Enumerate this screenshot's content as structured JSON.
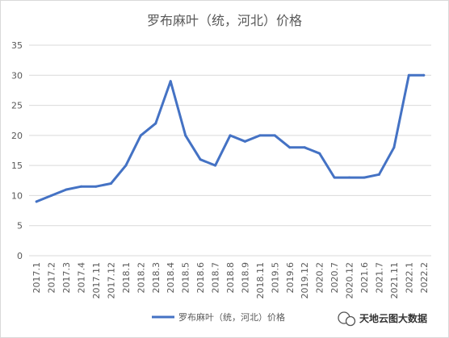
{
  "chart_data": {
    "type": "line",
    "title": "罗布麻叶（统，河北）价格",
    "xlabel": "",
    "ylabel": "",
    "ylim": [
      0,
      35
    ],
    "yticks": [
      0,
      5,
      10,
      15,
      20,
      25,
      30,
      35
    ],
    "grid": true,
    "legend_position": "bottom",
    "categories": [
      "2017.1",
      "2017.2",
      "2017.3",
      "2017.4",
      "2017.11",
      "2017.12",
      "2018.1",
      "2018.2",
      "2018.3",
      "2018.4",
      "2018.5",
      "2018.6",
      "2018.7",
      "2018.8",
      "2018.9",
      "2018.11",
      "2019.5",
      "2019.6",
      "2019.12",
      "2020.2",
      "2020.7",
      "2020.12",
      "2021.6",
      "2021.7",
      "2021.11",
      "2022.1",
      "2022.2"
    ],
    "series": [
      {
        "name": "罗布麻叶（统，河北）价格",
        "color": "#4472C4",
        "values": [
          9,
          10,
          11,
          11.5,
          11.5,
          12,
          15,
          20,
          22,
          29,
          20,
          16,
          15,
          20,
          19,
          20,
          20,
          18,
          18,
          17,
          13,
          13,
          13,
          13.5,
          18,
          30,
          30
        ]
      }
    ]
  },
  "watermark": {
    "icon": "wechat-icon",
    "text": "天地云图大数据"
  }
}
